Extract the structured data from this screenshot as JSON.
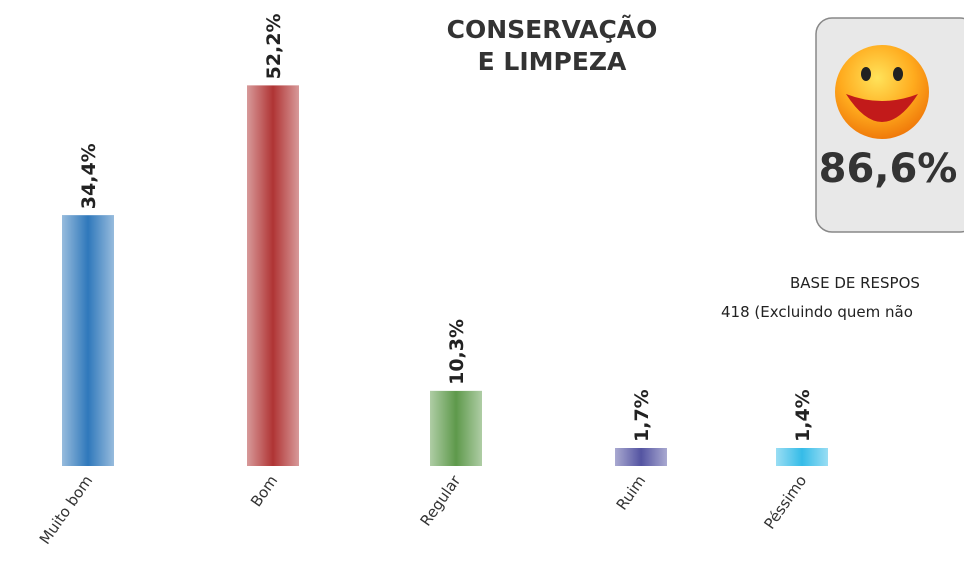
{
  "chart_data": {
    "type": "bar",
    "title": "CONSERVAÇÃO E LIMPEZA",
    "categories": [
      "Muito bom",
      "Bom",
      "Regular",
      "Ruim",
      "Péssimo"
    ],
    "values": [
      34.4,
      52.2,
      10.3,
      1.7,
      1.4
    ],
    "value_labels": [
      "34,4%",
      "52,2%",
      "10,3%",
      "1,7%",
      "1,4%"
    ],
    "colors": [
      "#2f78bb",
      "#b03434",
      "#5e9a4b",
      "#5454a2",
      "#35bce8"
    ],
    "ylim": [
      0,
      55
    ],
    "annotations": [
      "86,6%",
      "BASE DE RESPOS",
      "418 (Excluindo quem não"
    ]
  }
}
